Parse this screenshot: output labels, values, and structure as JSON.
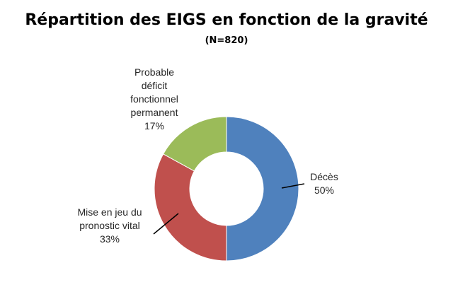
{
  "chart_data": {
    "type": "donut",
    "title": "Répartition des EIGS en fonction de la gravité",
    "subtitle": "(N=820)",
    "slices": [
      {
        "label_lines": [
          "Décès"
        ],
        "percent_label": "50%",
        "value": 50,
        "color": "#4f81bd"
      },
      {
        "label_lines": [
          "Mise en jeu du",
          "pronostic vital"
        ],
        "percent_label": "33%",
        "value": 33,
        "color": "#c0504d"
      },
      {
        "label_lines": [
          "Probable",
          "déficit",
          "fonctionnel",
          "permanent"
        ],
        "percent_label": "17%",
        "value": 17,
        "color": "#9bbb59"
      }
    ],
    "legend": "none"
  }
}
